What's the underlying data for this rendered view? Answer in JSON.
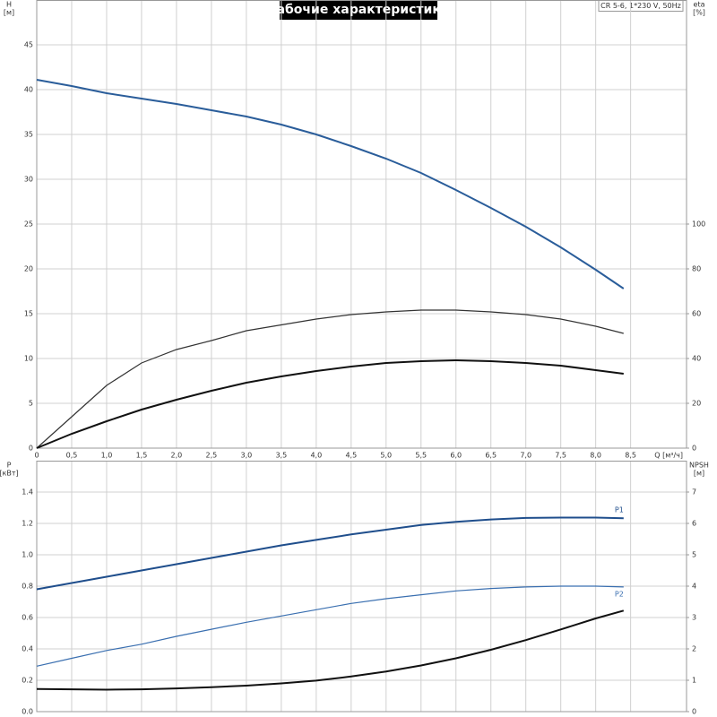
{
  "chart_data": [
    {
      "type": "line",
      "title": "Рабочие характеристики",
      "annotation": "CR 5-6, 1*230 V, 50Hz",
      "y_label": "H",
      "y_unit": "[м]",
      "y2_label": "eta",
      "y2_unit": "[%]",
      "x_label": "Q [м³/ч]",
      "x": [
        0,
        0.5,
        1,
        1.5,
        2,
        2.5,
        3,
        3.5,
        4,
        4.5,
        5,
        5.5,
        6,
        6.5,
        7,
        7.5,
        8,
        8.4
      ],
      "xlim": [
        0,
        9.3
      ],
      "xticks": [
        {
          "value": 0,
          "label": "0"
        },
        {
          "value": 0.5,
          "label": "0,5"
        },
        {
          "value": 1,
          "label": "1,0"
        },
        {
          "value": 1.5,
          "label": "1,5"
        },
        {
          "value": 2,
          "label": "2,0"
        },
        {
          "value": 2.5,
          "label": "2,5"
        },
        {
          "value": 3,
          "label": "3,0"
        },
        {
          "value": 3.5,
          "label": "3,5"
        },
        {
          "value": 4,
          "label": "4,0"
        },
        {
          "value": 4.5,
          "label": "4,5"
        },
        {
          "value": 5,
          "label": "5,0"
        },
        {
          "value": 5.5,
          "label": "5,5"
        },
        {
          "value": 6,
          "label": "6,0"
        },
        {
          "value": 6.5,
          "label": "6,5"
        },
        {
          "value": 7,
          "label": "7,0"
        },
        {
          "value": 7.5,
          "label": "7,5"
        },
        {
          "value": 8,
          "label": "8,0"
        },
        {
          "value": 8.5,
          "label": "8,5"
        }
      ],
      "show_xtick_labels": true,
      "ylim": [
        0,
        50
      ],
      "yticks": [
        0,
        5,
        10,
        15,
        20,
        25,
        30,
        35,
        40,
        45
      ],
      "y2lim": [
        0,
        200
      ],
      "y2ticks": [
        0,
        20,
        40,
        60,
        80,
        100
      ],
      "grid": true,
      "series": [
        {
          "color": "#2a5d9a",
          "width": 2,
          "values": [
            41.1,
            40.4,
            39.6,
            39.0,
            38.4,
            37.7,
            37.0,
            36.1,
            35.0,
            33.7,
            32.3,
            30.7,
            28.8,
            26.8,
            24.7,
            22.4,
            19.9,
            17.8
          ]
        },
        {
          "color": "#333333",
          "width": 1.2,
          "axis": "y2",
          "values": [
            0,
            14,
            28,
            38,
            44,
            48,
            52.4,
            55,
            57.6,
            59.6,
            60.8,
            61.6,
            61.6,
            60.8,
            59.6,
            57.6,
            54.4,
            51.2
          ]
        },
        {
          "color": "#111111",
          "width": 2,
          "axis": "y2",
          "values": [
            0,
            6.4,
            12,
            17.2,
            21.6,
            25.6,
            29.2,
            32,
            34.4,
            36.4,
            38,
            38.8,
            39.2,
            38.8,
            38,
            36.8,
            34.8,
            33.2
          ]
        }
      ]
    },
    {
      "type": "line",
      "y_label": "P",
      "y_unit": "[кВт]",
      "y2_label": "NPSH",
      "y2_unit": "[м]",
      "x": [
        0,
        0.5,
        1,
        1.5,
        2,
        2.5,
        3,
        3.5,
        4,
        4.5,
        5,
        5.5,
        6,
        6.5,
        7,
        7.5,
        8,
        8.4
      ],
      "xlim": [
        0,
        9.3
      ],
      "xticks": [
        0,
        0.5,
        1,
        1.5,
        2,
        2.5,
        3,
        3.5,
        4,
        4.5,
        5,
        5.5,
        6,
        6.5,
        7,
        7.5,
        8,
        8.5
      ],
      "show_xtick_labels": false,
      "ylim": [
        0,
        1.6
      ],
      "yticks": [
        {
          "value": 0,
          "label": "0.0"
        },
        0.2,
        0.4,
        0.6,
        0.8,
        {
          "value": 1,
          "label": "1.0"
        },
        1.2,
        1.4
      ],
      "y2lim": [
        0,
        8
      ],
      "y2ticks": [
        0,
        1,
        2,
        3,
        4,
        5,
        6,
        7
      ],
      "grid": true,
      "series": [
        {
          "name": "P1",
          "color": "#1f4e8c",
          "width": 2,
          "values": [
            0.78,
            0.82,
            0.86,
            0.9,
            0.94,
            0.98,
            1.02,
            1.06,
            1.095,
            1.13,
            1.16,
            1.19,
            1.21,
            1.225,
            1.235,
            1.237,
            1.237,
            1.233
          ]
        },
        {
          "name": "P2",
          "color": "#3a6fb0",
          "width": 1.2,
          "values": [
            0.29,
            0.34,
            0.39,
            0.43,
            0.48,
            0.525,
            0.57,
            0.61,
            0.65,
            0.69,
            0.72,
            0.745,
            0.77,
            0.785,
            0.795,
            0.8,
            0.8,
            0.795
          ]
        },
        {
          "color": "#111111",
          "width": 2,
          "axis": "y2",
          "values": [
            0.72,
            0.71,
            0.7,
            0.71,
            0.74,
            0.78,
            0.83,
            0.9,
            0.99,
            1.12,
            1.28,
            1.47,
            1.7,
            1.97,
            2.28,
            2.62,
            2.97,
            3.22
          ]
        }
      ]
    }
  ]
}
